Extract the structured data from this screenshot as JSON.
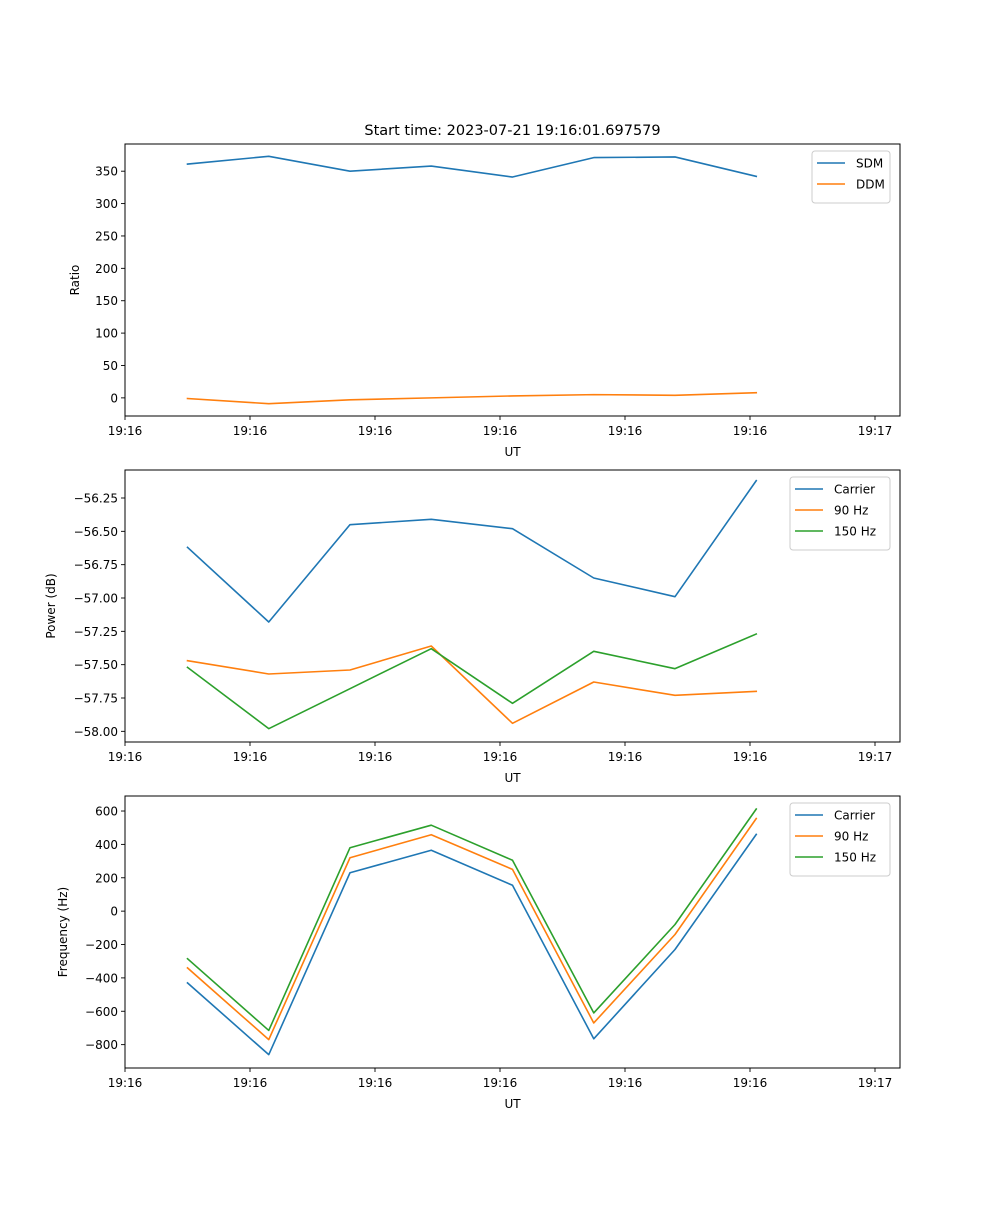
{
  "chart_data": [
    {
      "type": "line",
      "title": "Start time: 2023-07-21 19:16:01.697579",
      "xlabel": "UT",
      "ylabel": "Ratio",
      "xlim": [
        0,
        6.2
      ],
      "x": [
        0.5,
        1.15,
        1.8,
        2.45,
        3.1,
        3.75,
        4.4,
        5.05
      ],
      "xticks": [
        0,
        1,
        2,
        3,
        4,
        5,
        6
      ],
      "xtick_labels": [
        "19:16",
        "19:16",
        "19:16",
        "19:16",
        "19:16",
        "19:16",
        "19:17"
      ],
      "ylim": [
        -28,
        392
      ],
      "yticks": [
        0,
        50,
        100,
        150,
        200,
        250,
        300,
        350
      ],
      "ytick_labels": [
        "0",
        "50",
        "100",
        "150",
        "200",
        "250",
        "300",
        "350"
      ],
      "legend_position": "upper right",
      "series": [
        {
          "name": "SDM",
          "color": "#1f77b4",
          "values": [
            361,
            373,
            350,
            358,
            341,
            371,
            372,
            342
          ]
        },
        {
          "name": "DDM",
          "color": "#ff7f0e",
          "values": [
            -1,
            -9,
            -3,
            0,
            3,
            5,
            4,
            8
          ]
        }
      ]
    },
    {
      "type": "line",
      "title": "",
      "xlabel": "UT",
      "ylabel": "Power (dB)",
      "xlim": [
        0,
        6.2
      ],
      "x": [
        0.5,
        1.15,
        1.8,
        2.45,
        3.1,
        3.75,
        4.4,
        5.05
      ],
      "xticks": [
        0,
        1,
        2,
        3,
        4,
        5,
        6
      ],
      "xtick_labels": [
        "19:16",
        "19:16",
        "19:16",
        "19:16",
        "19:16",
        "19:16",
        "19:17"
      ],
      "ylim": [
        -58.08,
        -56.04
      ],
      "yticks": [
        -58.0,
        -57.75,
        -57.5,
        -57.25,
        -57.0,
        -56.75,
        -56.5,
        -56.25
      ],
      "ytick_labels": [
        "−58.00",
        "−57.75",
        "−57.50",
        "−57.25",
        "−57.00",
        "−56.75",
        "−56.50",
        "−56.25"
      ],
      "legend_position": "upper right",
      "series": [
        {
          "name": "Carrier",
          "color": "#1f77b4",
          "values": [
            -56.62,
            -57.18,
            -56.45,
            -56.41,
            -56.48,
            -56.85,
            -56.99,
            -56.12
          ]
        },
        {
          "name": "90 Hz",
          "color": "#ff7f0e",
          "values": [
            -57.47,
            -57.57,
            -57.54,
            -57.36,
            -57.94,
            -57.63,
            -57.73,
            -57.7
          ]
        },
        {
          "name": "150 Hz",
          "color": "#2ca02c",
          "values": [
            -57.52,
            -57.98,
            -57.68,
            -57.38,
            -57.79,
            -57.4,
            -57.53,
            -57.27
          ]
        }
      ]
    },
    {
      "type": "line",
      "title": "",
      "xlabel": "UT",
      "ylabel": "Frequency (Hz)",
      "xlim": [
        0,
        6.2
      ],
      "x": [
        0.5,
        1.15,
        1.8,
        2.45,
        3.1,
        3.75,
        4.4,
        5.05
      ],
      "xticks": [
        0,
        1,
        2,
        3,
        4,
        5,
        6
      ],
      "xtick_labels": [
        "19:16",
        "19:16",
        "19:16",
        "19:16",
        "19:16",
        "19:16",
        "19:17"
      ],
      "ylim": [
        -940,
        690
      ],
      "yticks": [
        -800,
        -600,
        -400,
        -200,
        0,
        200,
        400,
        600
      ],
      "ytick_labels": [
        "−800",
        "−600",
        "−400",
        "−200",
        "0",
        "200",
        "400",
        "600"
      ],
      "legend_position": "upper right",
      "series": [
        {
          "name": "Carrier",
          "color": "#1f77b4",
          "values": [
            -430,
            -860,
            230,
            365,
            155,
            -765,
            -230,
            460
          ]
        },
        {
          "name": "90 Hz",
          "color": "#ff7f0e",
          "values": [
            -340,
            -770,
            320,
            458,
            250,
            -670,
            -140,
            555
          ]
        },
        {
          "name": "150 Hz",
          "color": "#2ca02c",
          "values": [
            -285,
            -715,
            380,
            515,
            305,
            -610,
            -80,
            612
          ]
        }
      ]
    }
  ]
}
